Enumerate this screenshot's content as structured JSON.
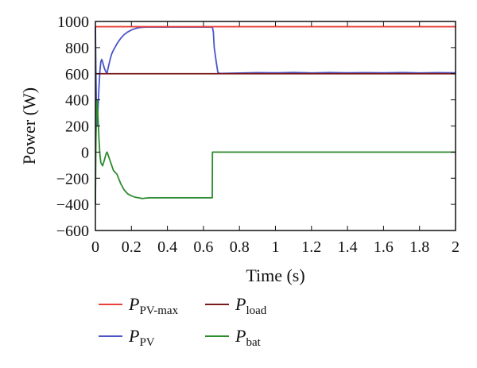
{
  "chart_data": {
    "type": "line",
    "title": "",
    "xlabel": "Time (s)",
    "ylabel": "Power (W)",
    "xlim": [
      0,
      2
    ],
    "ylim": [
      -600,
      1000
    ],
    "x_ticks": [
      0,
      0.2,
      0.4,
      0.6,
      0.8,
      1,
      1.2,
      1.4,
      1.6,
      1.8,
      2
    ],
    "x_tick_labels": [
      "0",
      "0.2",
      "0.4",
      "0.6",
      "0.8",
      "1",
      "1.2",
      "1.4",
      "1.6",
      "1.8",
      "2"
    ],
    "y_ticks": [
      -600,
      -400,
      -200,
      0,
      200,
      400,
      600,
      800,
      1000
    ],
    "y_tick_labels": [
      "−600",
      "−400",
      "−200",
      "0",
      "200",
      "400",
      "600",
      "800",
      "1000"
    ],
    "grid": false,
    "legend_position": "bottom",
    "series": [
      {
        "name_main": "P",
        "name_sub": "PV-max",
        "color": "#e8403a",
        "x": [
          0,
          2
        ],
        "y": [
          960,
          960
        ]
      },
      {
        "name_main": "P",
        "name_sub": "load",
        "color": "#7a1a1a",
        "x": [
          0,
          2
        ],
        "y": [
          600,
          600
        ]
      },
      {
        "name_main": "P",
        "name_sub": "PV",
        "color": "#4a55c8",
        "x": [
          0,
          0.003,
          0.006,
          0.01,
          0.015,
          0.02,
          0.025,
          0.03,
          0.035,
          0.04,
          0.05,
          0.06,
          0.065,
          0.07,
          0.08,
          0.09,
          0.1,
          0.12,
          0.14,
          0.16,
          0.18,
          0.2,
          0.22,
          0.24,
          0.26,
          0.28,
          0.3,
          0.35,
          0.4,
          0.5,
          0.6,
          0.64,
          0.65,
          0.655,
          0.66,
          0.67,
          0.68,
          0.69,
          0.7,
          0.8,
          0.9,
          1.0,
          1.1,
          1.2,
          1.3,
          1.4,
          1.5,
          1.6,
          1.7,
          1.8,
          1.9,
          2.0
        ],
        "y": [
          960,
          600,
          300,
          200,
          350,
          500,
          620,
          690,
          710,
          690,
          640,
          610,
          605,
          640,
          700,
          750,
          780,
          830,
          870,
          900,
          920,
          935,
          945,
          952,
          955,
          957,
          957,
          957,
          957,
          957,
          957,
          957,
          955,
          920,
          800,
          700,
          610,
          603,
          602,
          605,
          608,
          607,
          610,
          606,
          609,
          607,
          608,
          607,
          609,
          606,
          608,
          607
        ]
      },
      {
        "name_main": "P",
        "name_sub": "bat",
        "color": "#2e8b2e",
        "x": [
          0,
          0.003,
          0.006,
          0.01,
          0.015,
          0.02,
          0.025,
          0.03,
          0.04,
          0.05,
          0.06,
          0.065,
          0.07,
          0.08,
          0.09,
          0.1,
          0.12,
          0.14,
          0.16,
          0.18,
          0.2,
          0.22,
          0.24,
          0.26,
          0.28,
          0.3,
          0.35,
          0.4,
          0.5,
          0.6,
          0.649,
          0.65,
          0.66,
          0.8,
          1.0,
          1.2,
          1.4,
          1.6,
          1.8,
          2.0
        ],
        "y": [
          -400,
          100,
          300,
          400,
          250,
          100,
          -20,
          -80,
          -105,
          -60,
          -10,
          0,
          -20,
          -60,
          -100,
          -140,
          -170,
          -240,
          -290,
          -320,
          -335,
          -345,
          -350,
          -355,
          -352,
          -350,
          -350,
          -350,
          -350,
          -350,
          -350,
          0,
          0,
          0,
          0,
          0,
          0,
          0,
          0,
          0
        ]
      }
    ]
  }
}
